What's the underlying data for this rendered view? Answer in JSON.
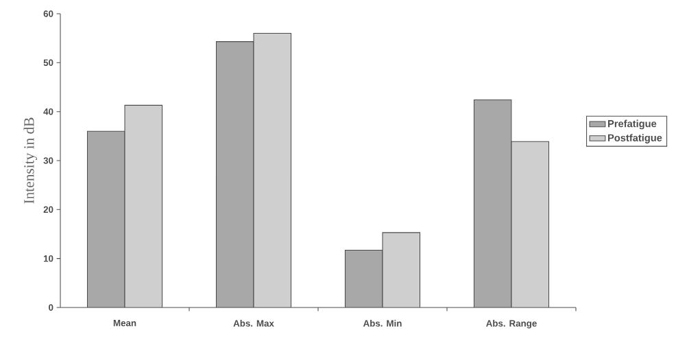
{
  "chart_data": {
    "type": "bar",
    "ylabel": "Intensity in dB",
    "categories": [
      "Mean",
      "Abs. Max",
      "Abs. Min",
      "Abs. Range"
    ],
    "series": [
      {
        "name": "Prefatigue",
        "color": "#a8a8a8",
        "values": [
          36.0,
          54.3,
          11.7,
          42.4
        ]
      },
      {
        "name": "Postfatigue",
        "color": "#cfcfcf",
        "values": [
          41.3,
          56.0,
          15.3,
          33.9
        ]
      }
    ],
    "ylim": [
      0,
      60
    ],
    "yticks": [
      0,
      10,
      20,
      30,
      40,
      50,
      60
    ],
    "grid": false,
    "legend": "right"
  }
}
